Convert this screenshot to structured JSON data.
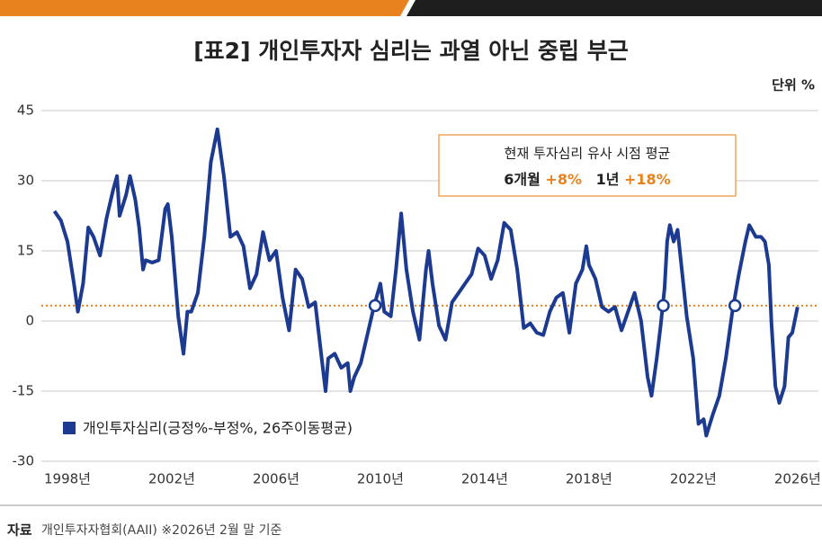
{
  "chart_data": {
    "type": "line",
    "title": "[표2] 개인투자자 심리는 과열 아닌 중립 부근",
    "unit_label": "단위 %",
    "x": [
      1997.5,
      1997.75,
      1998.0,
      1998.25,
      1998.4,
      1998.6,
      1998.8,
      1999.0,
      1999.25,
      1999.5,
      1999.75,
      1999.9,
      2000.0,
      2000.25,
      2000.4,
      2000.6,
      2000.75,
      2000.9,
      2001.0,
      2001.25,
      2001.5,
      2001.75,
      2001.85,
      2002.0,
      2002.25,
      2002.45,
      2002.6,
      2002.75,
      2003.0,
      2003.25,
      2003.5,
      2003.75,
      2004.0,
      2004.25,
      2004.5,
      2004.75,
      2005.0,
      2005.25,
      2005.5,
      2005.75,
      2006.0,
      2006.25,
      2006.5,
      2006.75,
      2007.0,
      2007.25,
      2007.5,
      2007.75,
      2007.9,
      2008.0,
      2008.25,
      2008.5,
      2008.75,
      2008.85,
      2009.0,
      2009.25,
      2009.5,
      2009.75,
      2010.0,
      2010.15,
      2010.4,
      2010.6,
      2010.8,
      2011.0,
      2011.25,
      2011.5,
      2011.75,
      2011.85,
      2012.0,
      2012.25,
      2012.5,
      2012.75,
      2013.0,
      2013.25,
      2013.5,
      2013.75,
      2014.0,
      2014.25,
      2014.5,
      2014.75,
      2015.0,
      2015.25,
      2015.5,
      2015.75,
      2016.0,
      2016.25,
      2016.5,
      2016.75,
      2017.0,
      2017.25,
      2017.5,
      2017.75,
      2017.9,
      2018.0,
      2018.25,
      2018.5,
      2018.75,
      2019.0,
      2019.25,
      2019.5,
      2019.75,
      2020.0,
      2020.25,
      2020.4,
      2020.6,
      2020.75,
      2020.9,
      2021.0,
      2021.1,
      2021.25,
      2021.4,
      2021.6,
      2021.75,
      2022.0,
      2022.2,
      2022.4,
      2022.5,
      2022.75,
      2023.0,
      2023.25,
      2023.5,
      2023.75,
      2024.0,
      2024.15,
      2024.4,
      2024.6,
      2024.75,
      2024.9,
      2025.0,
      2025.15,
      2025.3,
      2025.5,
      2025.65,
      2025.8,
      2026.0
    ],
    "series": [
      {
        "name": "개인투자심리(긍정%-부정%, 26주이동평균)",
        "color": "#1c3a8f",
        "values": [
          23.5,
          21.5,
          17,
          8,
          2,
          8,
          20,
          18,
          14,
          22,
          28,
          31,
          22.5,
          27,
          31,
          26,
          20,
          11,
          13,
          12.5,
          13,
          24,
          25,
          18,
          1,
          -7,
          2,
          2,
          6,
          18,
          34,
          41,
          31,
          18,
          19,
          16,
          7,
          10,
          19,
          13,
          15,
          5,
          -2,
          11,
          9,
          3,
          4,
          -8,
          -15,
          -8,
          -7,
          -10,
          -9,
          -15,
          -12,
          -9,
          -3,
          3,
          8,
          2,
          1,
          11,
          23,
          11,
          2,
          -4,
          11,
          15,
          8,
          -1,
          -4,
          4,
          6,
          8,
          10,
          15.5,
          14,
          9,
          13,
          21,
          19.5,
          11,
          -1.5,
          -0.5,
          -2.5,
          -3,
          2,
          5,
          6,
          -2.5,
          8,
          11,
          16,
          12,
          9,
          3,
          2,
          3,
          -2,
          2,
          6,
          0,
          -12,
          -16,
          -8,
          -1,
          7,
          17,
          20.5,
          17,
          19.5,
          9,
          1,
          -8,
          -22,
          -21,
          -24.5,
          -20,
          -16,
          -8,
          2,
          10,
          17,
          20.5,
          18,
          18,
          17,
          12,
          -0.5,
          -14,
          -17.5,
          -14,
          -3.5,
          -2.5,
          3
        ]
      }
    ],
    "reference_line": {
      "value": 3.3,
      "color": "#e8821e",
      "markers_x": [
        2009.8,
        2020.85,
        2023.6
      ]
    },
    "xlim": [
      1997,
      2026.8
    ],
    "ylim": [
      -30,
      45
    ],
    "xticks": [
      {
        "value": 1998,
        "label": "1998년"
      },
      {
        "value": 2002,
        "label": "2002년"
      },
      {
        "value": 2006,
        "label": "2006년"
      },
      {
        "value": 2010,
        "label": "2010년"
      },
      {
        "value": 2014,
        "label": "2014년"
      },
      {
        "value": 2018,
        "label": "2018년"
      },
      {
        "value": 2022,
        "label": "2022년"
      },
      {
        "value": 2026,
        "label": "2026년"
      }
    ],
    "yticks": [
      45,
      30,
      15,
      0,
      -15,
      -30
    ],
    "grid": true,
    "annotation": {
      "title": "현재 투자심리 유사 시점 평균",
      "items": [
        {
          "label": "6개월",
          "value": "+8%"
        },
        {
          "label": "1년",
          "value": "+18%"
        }
      ]
    },
    "source": {
      "label": "자료",
      "text": "개인투자자협회(AAII) ※2026년 2월 말 기준"
    }
  }
}
